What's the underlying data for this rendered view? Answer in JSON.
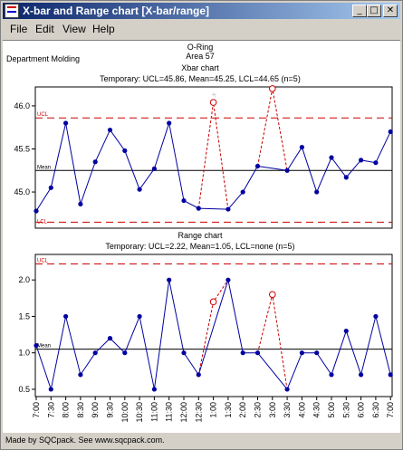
{
  "window": {
    "title": "X-bar and Range chart  [X-bar/range]"
  },
  "menu": [
    "File",
    "Edit",
    "View",
    "Help"
  ],
  "header": {
    "part": "O-Ring",
    "area": "Area 57",
    "department": "Department Molding"
  },
  "status": "Made by SQCpack. See www.sqcpack.com.",
  "time_labels": [
    "7:00",
    "7:30",
    "8:00",
    "8:30",
    "9:00",
    "9:30",
    "10:00",
    "10:30",
    "11:00",
    "11:30",
    "12:00",
    "12:30",
    "1:00",
    "1:30",
    "2:00",
    "2:30",
    "3:00",
    "3:30",
    "4:00",
    "4:30",
    "5:00",
    "5:30",
    "6:00",
    "6:30",
    "7:00"
  ],
  "chart_data": [
    {
      "type": "line",
      "title": "Xbar chart",
      "subtitle": "Temporary: UCL=45.86, Mean=45.25, LCL=44.65 (n=5)",
      "ucl": 45.86,
      "mean": 45.25,
      "lcl": 44.65,
      "ucl_label": "UCL",
      "mean_label": "Mean",
      "lcl_label": "LCL",
      "yticks": [
        45.0,
        45.5,
        46.0
      ],
      "ytick_labels": [
        "45.0",
        "45.5",
        "46.0"
      ],
      "ylim": [
        44.58,
        46.22
      ],
      "values": [
        44.78,
        45.05,
        45.8,
        44.86,
        45.35,
        45.72,
        45.48,
        45.03,
        45.27,
        45.8,
        44.9,
        44.81,
        null,
        44.8,
        45.0,
        45.3,
        null,
        45.25,
        45.52,
        45.0,
        45.4,
        45.17,
        45.37,
        45.34,
        45.7
      ],
      "excluded": [
        {
          "index": 12,
          "value": 46.04
        },
        {
          "index": 16,
          "value": 46.2
        }
      ],
      "excluded_annotation": "X",
      "colors": {
        "line": "#0000a0",
        "limits": "#cc0000",
        "mean": "#000000"
      }
    },
    {
      "type": "line",
      "title": "Range chart",
      "subtitle": "Temporary: UCL=2.22, Mean=1.05, LCL=none (n=5)",
      "ucl": 2.22,
      "mean": 1.05,
      "ucl_label": "UCL",
      "mean_label": "Mean",
      "yticks": [
        0.5,
        1.0,
        1.5,
        2.0
      ],
      "ytick_labels": [
        "0.5",
        "1.0",
        "1.5",
        "2.0"
      ],
      "ylim": [
        0.4,
        2.35
      ],
      "values": [
        1.1,
        0.5,
        1.5,
        0.7,
        1.0,
        1.2,
        1.0,
        1.5,
        0.5,
        2.0,
        1.0,
        0.7,
        null,
        2.0,
        1.0,
        1.0,
        null,
        0.5,
        1.0,
        1.0,
        0.7,
        1.3,
        0.7,
        1.5,
        0.7
      ],
      "excluded": [
        {
          "index": 12,
          "value": 1.7
        },
        {
          "index": 16,
          "value": 1.8
        }
      ],
      "colors": {
        "line": "#0000a0",
        "limits": "#cc0000",
        "mean": "#000000"
      }
    }
  ]
}
